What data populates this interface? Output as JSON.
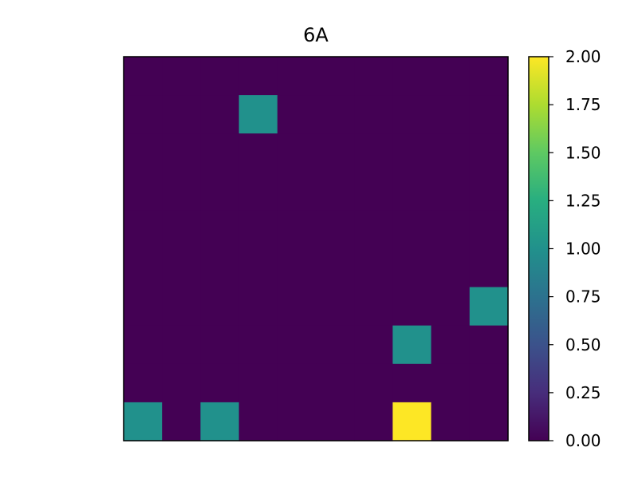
{
  "chart_data": {
    "type": "heatmap",
    "title": "6A",
    "xlabel": "",
    "ylabel": "",
    "rows": 10,
    "cols": 10,
    "values": [
      [
        0,
        0,
        0,
        0,
        0,
        0,
        0,
        0,
        0,
        0
      ],
      [
        0,
        0,
        0,
        1,
        0,
        0,
        0,
        0,
        0,
        0
      ],
      [
        0,
        0,
        0,
        0,
        0,
        0,
        0,
        0,
        0,
        0
      ],
      [
        0,
        0,
        0,
        0,
        0,
        0,
        0,
        0,
        0,
        0
      ],
      [
        0,
        0,
        0,
        0,
        0,
        0,
        0,
        0,
        0,
        0
      ],
      [
        0,
        0,
        0,
        0,
        0,
        0,
        0,
        0,
        0,
        0
      ],
      [
        0,
        0,
        0,
        0,
        0,
        0,
        0,
        0,
        0,
        1
      ],
      [
        0,
        0,
        0,
        0,
        0,
        0,
        0,
        1,
        0,
        0
      ],
      [
        0,
        0,
        0,
        0,
        0,
        0,
        0,
        0,
        0,
        0
      ],
      [
        1,
        0,
        1,
        0,
        0,
        0,
        0,
        2,
        0,
        0
      ]
    ],
    "colorbar": {
      "range": [
        0,
        2
      ],
      "ticks": [
        0,
        0.25,
        0.5,
        0.75,
        1.0,
        1.25,
        1.5,
        1.75,
        2.0
      ],
      "tick_labels": [
        "0.00",
        "0.25",
        "0.50",
        "0.75",
        "1.00",
        "1.25",
        "1.50",
        "1.75",
        "2.00"
      ],
      "colormap": "viridis"
    },
    "axes_ticks_shown": false,
    "grid": false
  }
}
